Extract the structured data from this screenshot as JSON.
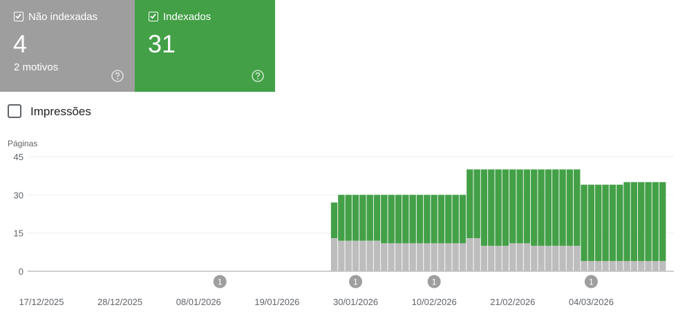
{
  "cards": {
    "nonindexed": {
      "label": "Não indexadas",
      "count": "4",
      "sub": "2 motivos",
      "color": "#9e9e9e",
      "checked": true,
      "help_icon": "help-circle-icon"
    },
    "indexed": {
      "label": "Indexados",
      "count": "31",
      "color": "#43a047",
      "checked": true,
      "help_icon": "help-circle-icon"
    }
  },
  "impressions": {
    "label": "Impressões",
    "checked": false
  },
  "chart_data": {
    "type": "bar",
    "stacked": true,
    "ylabel": "Páginas",
    "ylim": [
      0,
      45
    ],
    "yticks": [
      0,
      15,
      30,
      45
    ],
    "grid": true,
    "x_start": "17/12/2025",
    "x_tick_labels": [
      "17/12/2025",
      "28/12/2025",
      "08/01/2026",
      "19/01/2026",
      "30/01/2026",
      "10/02/2026",
      "21/02/2026",
      "04/03/2026"
    ],
    "categories": [
      "17/12/2025",
      "18/12/2025",
      "19/12/2025",
      "20/12/2025",
      "21/12/2025",
      "22/12/2025",
      "23/12/2025",
      "24/12/2025",
      "25/12/2025",
      "26/12/2025",
      "27/12/2025",
      "28/12/2025",
      "29/12/2025",
      "30/12/2025",
      "31/12/2025",
      "01/01/2026",
      "02/01/2026",
      "03/01/2026",
      "04/01/2026",
      "05/01/2026",
      "06/01/2026",
      "07/01/2026",
      "08/01/2026",
      "09/01/2026",
      "10/01/2026",
      "11/01/2026",
      "12/01/2026",
      "13/01/2026",
      "14/01/2026",
      "15/01/2026",
      "16/01/2026",
      "17/01/2026",
      "18/01/2026",
      "19/01/2026",
      "20/01/2026",
      "21/01/2026",
      "22/01/2026",
      "23/01/2026",
      "24/01/2026",
      "25/01/2026",
      "26/01/2026",
      "27/01/2026",
      "28/01/2026",
      "29/01/2026",
      "30/01/2026",
      "31/01/2026",
      "01/02/2026",
      "02/02/2026",
      "03/02/2026",
      "04/02/2026",
      "05/02/2026",
      "06/02/2026",
      "07/02/2026",
      "08/02/2026",
      "09/02/2026",
      "10/02/2026",
      "11/02/2026",
      "12/02/2026",
      "13/02/2026",
      "14/02/2026",
      "15/02/2026",
      "16/02/2026",
      "17/02/2026",
      "18/02/2026",
      "19/02/2026",
      "20/02/2026",
      "21/02/2026",
      "22/02/2026",
      "23/02/2026",
      "24/02/2026",
      "25/02/2026",
      "26/02/2026",
      "27/02/2026",
      "28/02/2026",
      "01/03/2026",
      "02/03/2026",
      "03/03/2026",
      "04/03/2026",
      "05/03/2026",
      "06/03/2026",
      "07/03/2026",
      "08/03/2026",
      "09/03/2026",
      "10/03/2026",
      "11/03/2026",
      "12/03/2026",
      "13/03/2026",
      "14/03/2026"
    ],
    "series": [
      {
        "name": "Não indexadas",
        "color": "#bdbdbd",
        "values": [
          0,
          0,
          0,
          0,
          0,
          0,
          0,
          0,
          0,
          0,
          0,
          0,
          0,
          0,
          0,
          0,
          0,
          0,
          0,
          0,
          0,
          0,
          0,
          0,
          0,
          0,
          0,
          0,
          0,
          0,
          0,
          0,
          0,
          0,
          0,
          0,
          0,
          0,
          0,
          0,
          0,
          13,
          12,
          12,
          12,
          12,
          12,
          12,
          11,
          11,
          11,
          11,
          11,
          11,
          11,
          11,
          11,
          11,
          11,
          11,
          13,
          13,
          10,
          10,
          10,
          10,
          11,
          11,
          11,
          10,
          10,
          10,
          10,
          10,
          10,
          10,
          4,
          4,
          4,
          4,
          4,
          4,
          4,
          4,
          4,
          4,
          4,
          4
        ]
      },
      {
        "name": "Indexados",
        "color": "#43a047",
        "values": [
          0,
          0,
          0,
          0,
          0,
          0,
          0,
          0,
          0,
          0,
          0,
          0,
          0,
          0,
          0,
          0,
          0,
          0,
          0,
          0,
          0,
          0,
          0,
          0,
          0,
          0,
          0,
          0,
          0,
          0,
          0,
          0,
          0,
          0,
          0,
          0,
          0,
          0,
          0,
          0,
          0,
          14,
          18,
          18,
          18,
          18,
          18,
          18,
          19,
          19,
          19,
          19,
          19,
          19,
          19,
          19,
          19,
          19,
          19,
          19,
          27,
          27,
          30,
          30,
          30,
          30,
          29,
          29,
          29,
          30,
          30,
          30,
          30,
          30,
          30,
          30,
          30,
          30,
          30,
          30,
          30,
          30,
          31,
          31,
          31,
          31,
          31,
          31
        ]
      }
    ],
    "annotations": [
      {
        "date": "11/01/2026",
        "label": "1"
      },
      {
        "date": "30/01/2026",
        "label": "1"
      },
      {
        "date": "10/02/2026",
        "label": "1"
      },
      {
        "date": "04/03/2026",
        "label": "1"
      }
    ]
  }
}
